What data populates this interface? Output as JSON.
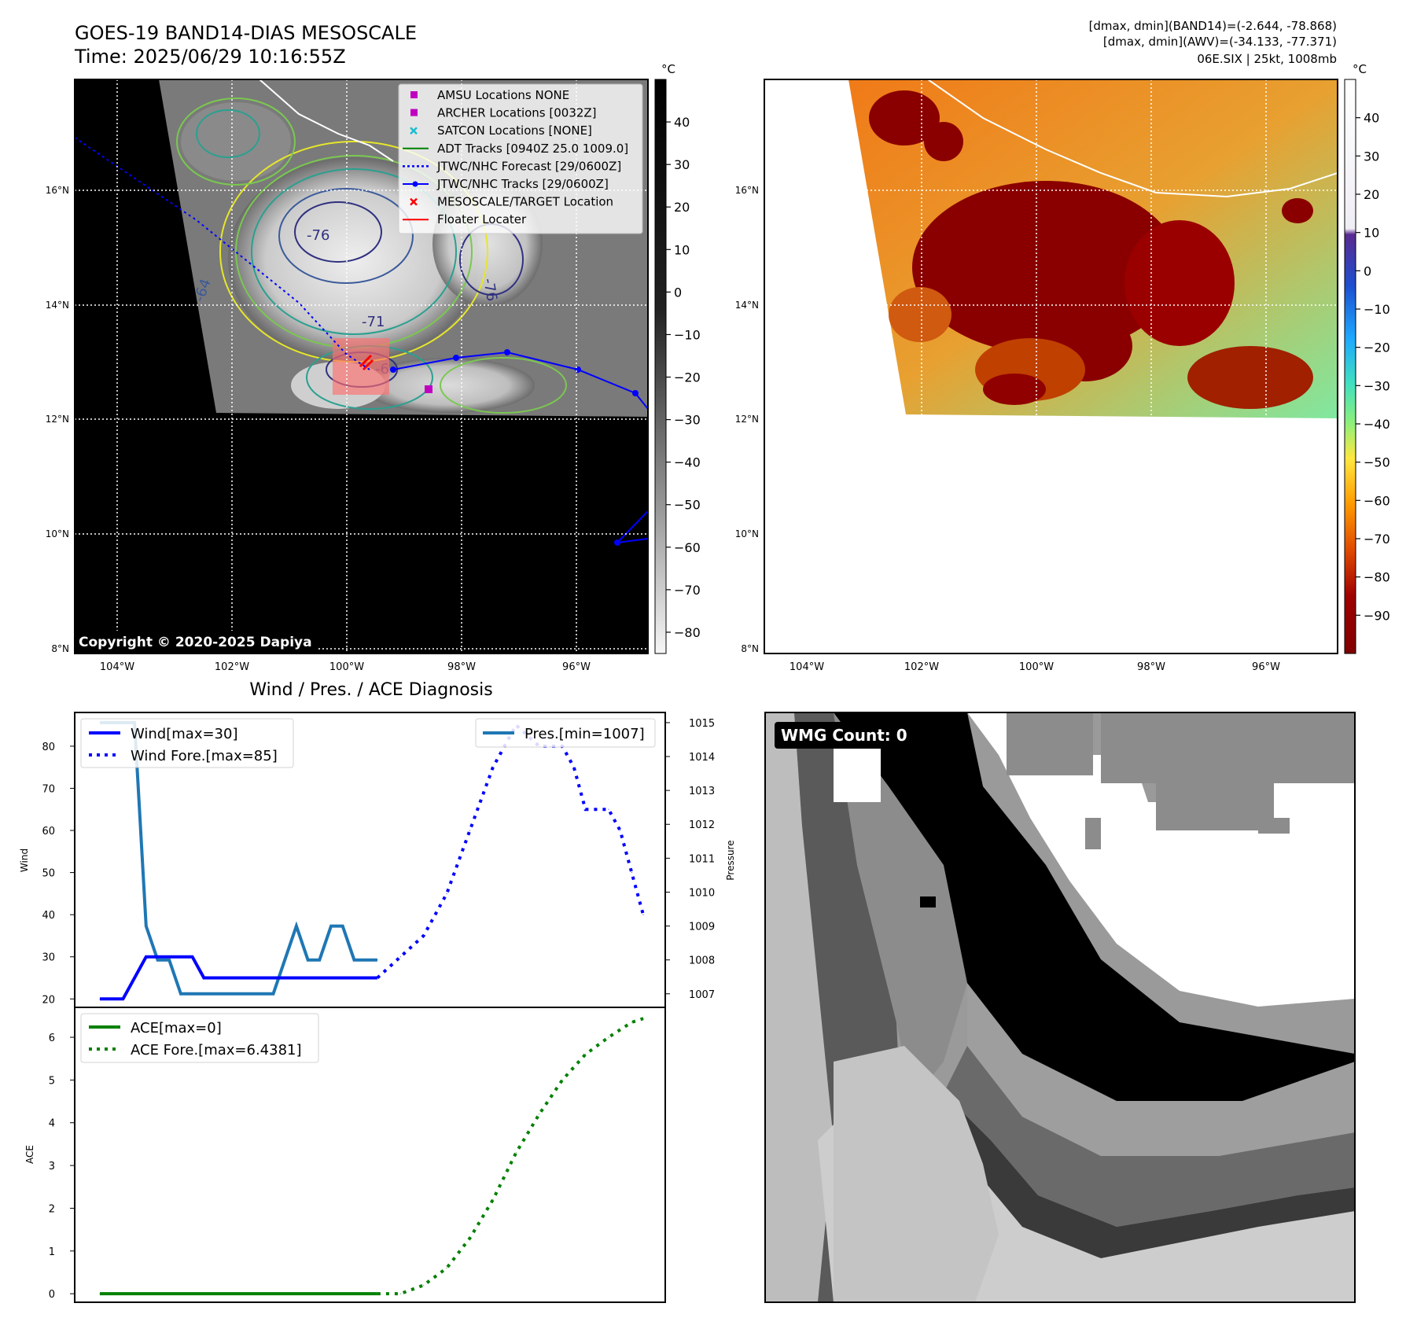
{
  "header": {
    "title_line1": "GOES-19 BAND14-DIAS MESOSCALE",
    "title_line2": "Time: 2025/06/29 10:16:55Z",
    "right_line1": "[dmax, dmin](BAND14)=(-2.644, -78.868)",
    "right_line2": "[dmax, dmin](AWV)=(-34.133, -77.371)",
    "right_line3": "06E.SIX | 25kt, 1008mb"
  },
  "map": {
    "lat_ticks": [
      "16°N",
      "14°N",
      "12°N",
      "10°N",
      "8°N"
    ],
    "lon_ticks": [
      "104°W",
      "102°W",
      "100°W",
      "98°W",
      "96°W"
    ],
    "copyright": "Copyright © 2020-2025 Dapiya",
    "contour_labels": [
      "-76",
      "-76",
      "-64",
      "-71",
      "-6"
    ],
    "legend": [
      {
        "label": "AMSU Locations NONE",
        "marker": "square",
        "color": "#c000c0"
      },
      {
        "label": "ARCHER Locations [0032Z]",
        "marker": "square",
        "color": "#c000c0"
      },
      {
        "label": "SATCON Locations [NONE]",
        "marker": "x",
        "color": "#17becf"
      },
      {
        "label": "ADT Tracks [0940Z 25.0 1009.0]",
        "marker": "line",
        "color": "#008000"
      },
      {
        "label": "JTWC/NHC Forecast [29/0600Z]",
        "marker": "dotted",
        "color": "#0000ff"
      },
      {
        "label": "JTWC/NHC Tracks [29/0600Z]",
        "marker": "line-dot",
        "color": "#0000ff"
      },
      {
        "label": "MESOSCALE/TARGET Location",
        "marker": "x",
        "color": "#ff0000"
      },
      {
        "label": "Floater Locater",
        "marker": "line",
        "color": "#ff0000"
      }
    ]
  },
  "colorbar_ir": {
    "unit": "°C",
    "ticks": [
      "40",
      "30",
      "20",
      "10",
      "0",
      "−10",
      "−20",
      "−30",
      "−40",
      "−50",
      "−60",
      "−70",
      "−80"
    ]
  },
  "colorbar_wv": {
    "unit": "°C",
    "ticks": [
      "40",
      "30",
      "20",
      "10",
      "0",
      "−10",
      "−20",
      "−30",
      "−40",
      "−50",
      "−60",
      "−70",
      "−80",
      "−90"
    ]
  },
  "diagnosis": {
    "title": "Wind / Pres. / ACE Diagnosis",
    "wind_ylabel": "Wind",
    "pressure_ylabel": "Pressure",
    "ace_ylabel": "ACE",
    "wind_legend": [
      "Wind[max=30]",
      "Wind Fore.[max=85]"
    ],
    "pressure_legend": "Pres.[min=1007]",
    "ace_legend": [
      "ACE[max=0]",
      "ACE Fore.[max=6.4381]"
    ],
    "wind_ticks": [
      "80",
      "70",
      "60",
      "50",
      "40",
      "30",
      "20"
    ],
    "pressure_ticks": [
      "1015",
      "1014",
      "1013",
      "1012",
      "1011",
      "1010",
      "1009",
      "1008",
      "1007"
    ],
    "ace_ticks": [
      "6",
      "5",
      "4",
      "3",
      "2",
      "1",
      "0"
    ]
  },
  "wmg": {
    "label": "WMG Count: 0"
  },
  "chart_data": [
    {
      "type": "line",
      "title": "Wind / Pres. / ACE Diagnosis",
      "ylabel": "Wind",
      "ylim": [
        18,
        88
      ],
      "x": [
        0,
        1,
        2,
        3,
        4,
        5,
        6,
        7,
        8,
        9,
        10,
        11,
        12,
        13,
        14,
        15,
        16,
        17,
        18,
        19,
        20,
        21,
        22,
        23,
        24,
        25,
        26,
        27,
        28,
        29,
        30,
        31,
        32,
        33,
        34,
        35,
        36,
        37,
        38,
        39,
        40,
        41,
        42,
        43,
        44,
        45,
        46,
        47
      ],
      "series": [
        {
          "name": "Wind[max=30]",
          "color": "#0000ff",
          "style": "solid",
          "x": [
            0,
            2,
            4,
            5,
            6,
            7,
            8,
            9,
            10,
            11,
            12,
            13,
            14,
            15,
            16,
            17,
            18,
            19,
            20,
            21,
            22,
            23,
            24
          ],
          "values": [
            20,
            20,
            30,
            30,
            30,
            30,
            30,
            25,
            25,
            25,
            25,
            25,
            25,
            25,
            25,
            25,
            25,
            25,
            25,
            25,
            25,
            25,
            25
          ]
        },
        {
          "name": "Wind Fore.[max=85]",
          "color": "#0000ff",
          "style": "dotted",
          "x": [
            24,
            26,
            28,
            30,
            32,
            34,
            36,
            38,
            39,
            40,
            41,
            42,
            43,
            44,
            45,
            46,
            47
          ],
          "values": [
            25,
            30,
            35,
            45,
            60,
            75,
            85,
            80,
            80,
            80,
            75,
            65,
            65,
            65,
            60,
            50,
            40
          ]
        },
        {
          "name": "Pres.[min=1007]",
          "color": "#1f77b4",
          "style": "solid",
          "axis": "right",
          "x": [
            0,
            2,
            3,
            4,
            5,
            6,
            7,
            8,
            9,
            10,
            11,
            12,
            13,
            14,
            15,
            16,
            17,
            18,
            19,
            20,
            21,
            22,
            23,
            24
          ],
          "values": [
            1015,
            1015,
            1015,
            1009,
            1008,
            1008,
            1007,
            1007,
            1007,
            1007,
            1007,
            1007,
            1007,
            1007,
            1007,
            1008,
            1009,
            1008,
            1008,
            1009,
            1009,
            1008,
            1008,
            1008
          ]
        }
      ],
      "y2lim": [
        1006.6,
        1015.3
      ],
      "y2label": "Pressure"
    },
    {
      "type": "line",
      "ylabel": "ACE",
      "ylim": [
        -0.2,
        6.7
      ],
      "series": [
        {
          "name": "ACE[max=0]",
          "color": "#008000",
          "style": "solid",
          "x": [
            0,
            24
          ],
          "values": [
            0,
            0
          ]
        },
        {
          "name": "ACE Fore.[max=6.4381]",
          "color": "#008000",
          "style": "dotted",
          "x": [
            24,
            26,
            28,
            30,
            32,
            34,
            36,
            38,
            40,
            42,
            44,
            46,
            47
          ],
          "values": [
            0,
            0,
            0.2,
            0.6,
            1.3,
            2.2,
            3.3,
            4.2,
            5.0,
            5.6,
            6.0,
            6.35,
            6.4381
          ]
        }
      ]
    }
  ]
}
